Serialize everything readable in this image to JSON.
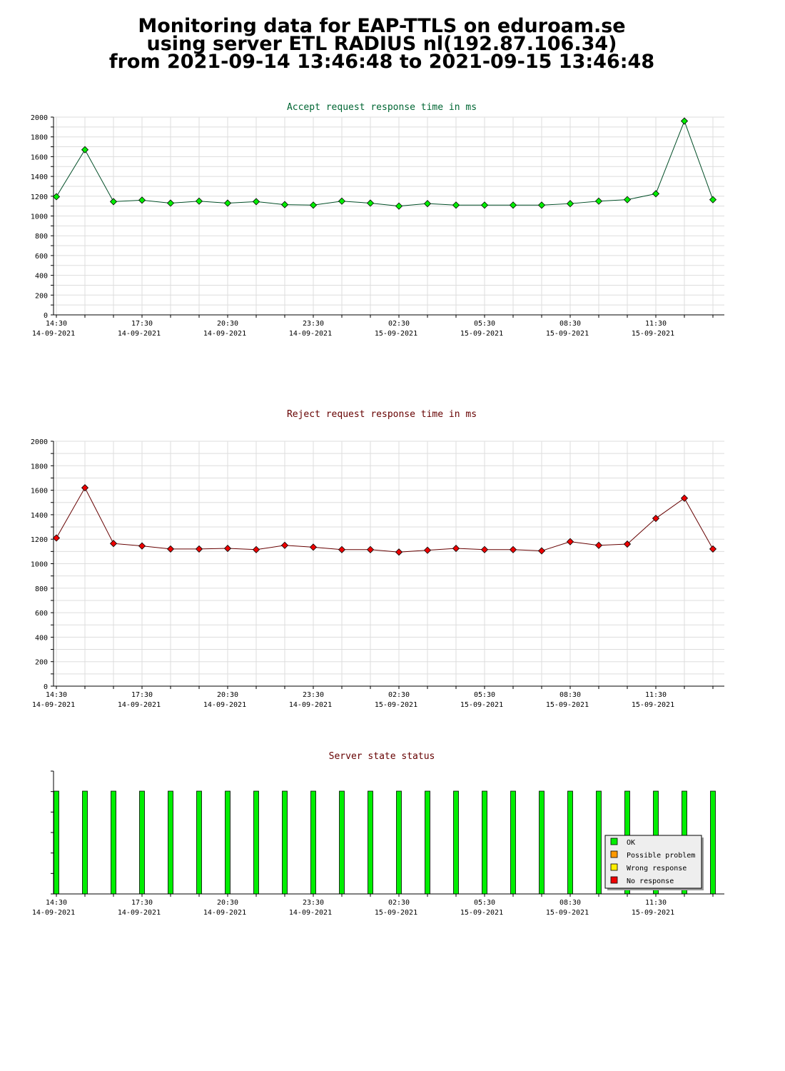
{
  "page": {
    "title_lines": [
      "Monitoring data for EAP-TTLS on eduroam.se",
      "using server ETL RADIUS nl(192.87.106.34)",
      "from 2021-09-14 13:46:48 to 2021-09-15 13:46:48"
    ]
  },
  "colors": {
    "grid": "#dddddd",
    "axis": "#000000"
  },
  "chart_data": [
    {
      "type": "line",
      "title": "Accept request response time in ms",
      "title_color": "#006633",
      "line_color": "#004d26",
      "marker_color": "#00ee00",
      "ylim": [
        0,
        2000
      ],
      "y_ticks": [
        0,
        200,
        400,
        600,
        800,
        1000,
        1200,
        1400,
        1600,
        1800,
        2000
      ],
      "grid": true,
      "x_tick_labels": [
        [
          "14:30",
          "14-09-2021"
        ],
        [
          "17:30",
          "14-09-2021"
        ],
        [
          "20:30",
          "14-09-2021"
        ],
        [
          "23:30",
          "14-09-2021"
        ],
        [
          "02:30",
          "15-09-2021"
        ],
        [
          "05:30",
          "15-09-2021"
        ],
        [
          "08:30",
          "15-09-2021"
        ],
        [
          "11:30",
          "15-09-2021"
        ]
      ],
      "x": [
        "14:30",
        "15:30",
        "16:30",
        "17:30",
        "18:30",
        "19:30",
        "20:30",
        "21:30",
        "22:30",
        "23:30",
        "00:30",
        "01:30",
        "02:30",
        "03:30",
        "04:30",
        "05:30",
        "06:30",
        "07:30",
        "08:30",
        "09:30",
        "10:30",
        "11:30",
        "12:30",
        "13:30"
      ],
      "values": [
        1195,
        1670,
        1145,
        1160,
        1130,
        1150,
        1130,
        1145,
        1115,
        1110,
        1150,
        1130,
        1100,
        1125,
        1110,
        1110,
        1110,
        1110,
        1125,
        1150,
        1165,
        1225,
        1960,
        1165
      ]
    },
    {
      "type": "line",
      "title": "Reject request response time in ms",
      "title_color": "#660000",
      "line_color": "#660000",
      "marker_color": "#ee0000",
      "ylim": [
        0,
        2000
      ],
      "y_ticks": [
        0,
        200,
        400,
        600,
        800,
        1000,
        1200,
        1400,
        1600,
        1800,
        2000
      ],
      "grid": true,
      "x_tick_labels": [
        [
          "14:30",
          "14-09-2021"
        ],
        [
          "17:30",
          "14-09-2021"
        ],
        [
          "20:30",
          "14-09-2021"
        ],
        [
          "23:30",
          "14-09-2021"
        ],
        [
          "02:30",
          "15-09-2021"
        ],
        [
          "05:30",
          "15-09-2021"
        ],
        [
          "08:30",
          "15-09-2021"
        ],
        [
          "11:30",
          "15-09-2021"
        ]
      ],
      "x": [
        "14:30",
        "15:30",
        "16:30",
        "17:30",
        "18:30",
        "19:30",
        "20:30",
        "21:30",
        "22:30",
        "23:30",
        "00:30",
        "01:30",
        "02:30",
        "03:30",
        "04:30",
        "05:30",
        "06:30",
        "07:30",
        "08:30",
        "09:30",
        "10:30",
        "11:30",
        "12:30",
        "13:30"
      ],
      "values": [
        1210,
        1620,
        1165,
        1145,
        1120,
        1120,
        1125,
        1115,
        1150,
        1135,
        1115,
        1115,
        1095,
        1110,
        1125,
        1115,
        1115,
        1105,
        1180,
        1150,
        1160,
        1370,
        1535,
        1120
      ]
    },
    {
      "type": "bar",
      "title": "Server state status",
      "title_color": "#660000",
      "grid": false,
      "x_tick_labels": [
        [
          "14:30",
          "14-09-2021"
        ],
        [
          "17:30",
          "14-09-2021"
        ],
        [
          "20:30",
          "14-09-2021"
        ],
        [
          "23:30",
          "14-09-2021"
        ],
        [
          "02:30",
          "15-09-2021"
        ],
        [
          "05:30",
          "15-09-2021"
        ],
        [
          "08:30",
          "15-09-2021"
        ],
        [
          "11:30",
          "15-09-2021"
        ]
      ],
      "x": [
        "14:30",
        "15:30",
        "16:30",
        "17:30",
        "18:30",
        "19:30",
        "20:30",
        "21:30",
        "22:30",
        "23:30",
        "00:30",
        "01:30",
        "02:30",
        "03:30",
        "04:30",
        "05:30",
        "06:30",
        "07:30",
        "08:30",
        "09:30",
        "10:30",
        "11:30",
        "12:30",
        "13:30"
      ],
      "states": [
        "OK",
        "OK",
        "OK",
        "OK",
        "OK",
        "OK",
        "OK",
        "OK",
        "OK",
        "OK",
        "OK",
        "OK",
        "OK",
        "OK",
        "OK",
        "OK",
        "OK",
        "OK",
        "OK",
        "OK",
        "OK",
        "OK",
        "OK",
        "OK"
      ],
      "legend": {
        "placement": "bottom-right",
        "entries": [
          {
            "label": "OK",
            "color": "#00ee00"
          },
          {
            "label": "Possible problem",
            "color": "#ff9900"
          },
          {
            "label": "Wrong response",
            "color": "#ffee00"
          },
          {
            "label": "No response",
            "color": "#ee0000"
          }
        ]
      }
    }
  ]
}
